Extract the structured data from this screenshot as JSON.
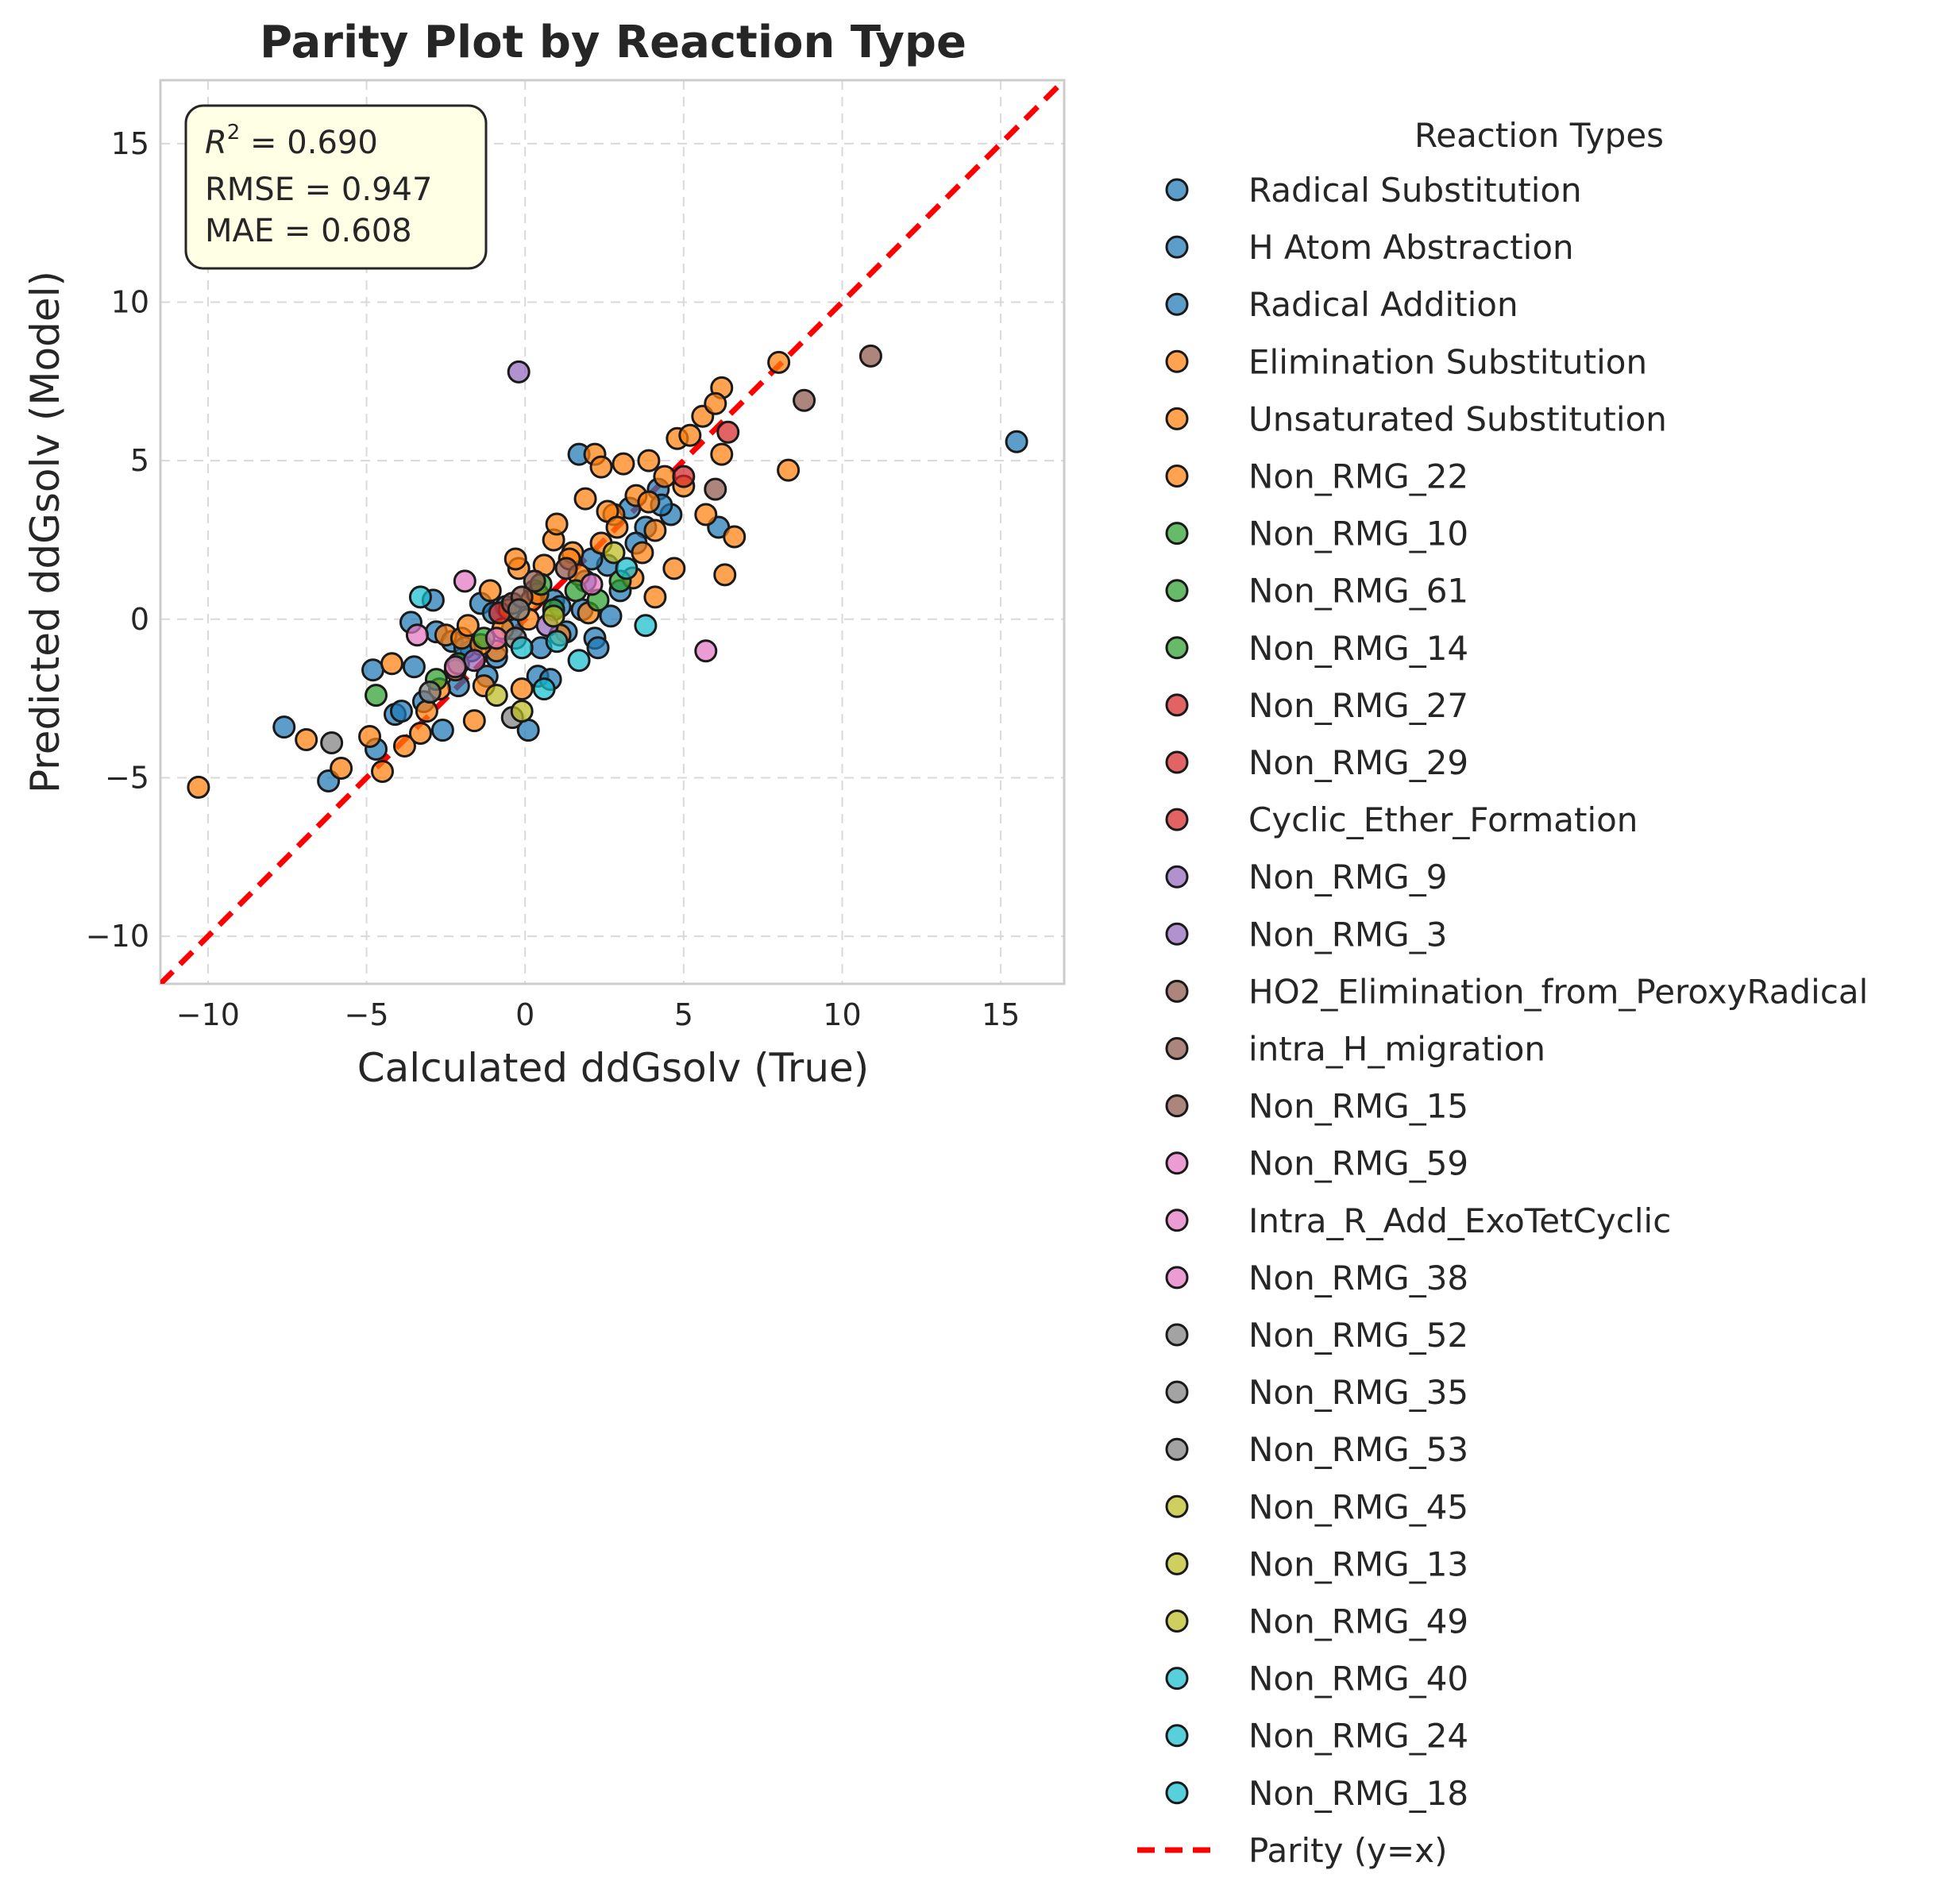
{
  "chart_data": {
    "type": "scatter",
    "title": "Parity Plot by Reaction Type",
    "xlabel": "Calculated ddGsolv (True)",
    "ylabel": "Predicted ddGsolv (Model)",
    "xlim": [
      -11.5,
      17
    ],
    "ylim": [
      -11.5,
      17
    ],
    "xticks": [
      -10,
      -5,
      0,
      5,
      10,
      15
    ],
    "yticks": [
      -10,
      -5,
      0,
      5,
      10,
      15
    ],
    "xtick_labels": [
      "−10",
      "−5",
      "0",
      "5",
      "10",
      "15"
    ],
    "ytick_labels": [
      "−10",
      "−5",
      "0",
      "5",
      "10",
      "15"
    ],
    "grid": true,
    "legend_title": "Reaction Types",
    "legend_position": "outside-right",
    "stats": {
      "r2_symbol": "R",
      "r2_exp": "2",
      "r2_value": " = 0.690",
      "rmse": "RMSE = 0.947",
      "mae": "MAE = 0.608"
    },
    "parity_line": {
      "label": "Parity (y=x)",
      "color": "#ff0000",
      "style": "dashed"
    },
    "series": [
      {
        "name": "Radical Substitution",
        "color": "#1f77b4",
        "points": [
          [
            -2.8,
            -0.4
          ],
          [
            -1.2,
            -1.8
          ],
          [
            0.5,
            -0.9
          ],
          [
            1.8,
            0.3
          ],
          [
            2.6,
            1.7
          ],
          [
            3.8,
            2.9
          ],
          [
            -4.1,
            -3.0
          ],
          [
            -1.7,
            -1.0
          ],
          [
            0.9,
            0.6
          ],
          [
            2.2,
            -0.6
          ],
          [
            3.3,
            3.5
          ],
          [
            4.2,
            4.1
          ],
          [
            -3.5,
            -1.5
          ],
          [
            -0.6,
            0.4
          ]
        ]
      },
      {
        "name": "H Atom Abstraction",
        "color": "#1f77b4",
        "points": [
          [
            -7.6,
            -3.4
          ],
          [
            -6.2,
            -5.1
          ],
          [
            -4.8,
            -1.6
          ],
          [
            -3.6,
            -0.1
          ],
          [
            -2.9,
            0.6
          ],
          [
            -2.1,
            -2.1
          ],
          [
            -0.9,
            -1.2
          ],
          [
            0.1,
            -3.5
          ],
          [
            1.3,
            -0.4
          ],
          [
            2.3,
            -0.9
          ],
          [
            3.0,
            0.9
          ],
          [
            4.6,
            3.3
          ],
          [
            6.1,
            2.9
          ],
          [
            1.7,
            5.2
          ],
          [
            -3.9,
            -2.9
          ],
          [
            -2.3,
            -0.7
          ],
          [
            -1.4,
            0.5
          ],
          [
            0.4,
            -1.8
          ],
          [
            2.1,
            1.9
          ]
        ]
      },
      {
        "name": "Radical Addition",
        "color": "#1f77b4",
        "points": [
          [
            15.5,
            5.6
          ],
          [
            -4.7,
            -4.1
          ],
          [
            -3.2,
            -2.6
          ],
          [
            -1.9,
            -0.9
          ],
          [
            -0.4,
            -0.3
          ],
          [
            0.8,
            -1.9
          ],
          [
            1.9,
            1.2
          ],
          [
            3.5,
            2.4
          ],
          [
            4.3,
            3.6
          ],
          [
            -1.0,
            0.2
          ],
          [
            0.3,
            0.9
          ],
          [
            2.7,
            0.1
          ],
          [
            -2.6,
            -3.5
          ],
          [
            1.1,
            0.4
          ]
        ]
      },
      {
        "name": "Elimination Substitution",
        "color": "#ff7f0e",
        "points": [
          [
            -10.3,
            -5.3
          ],
          [
            -6.9,
            -3.8
          ],
          [
            -5.8,
            -4.7
          ],
          [
            -4.9,
            -3.7
          ],
          [
            -3.8,
            -4.0
          ],
          [
            -2.5,
            -0.5
          ],
          [
            -1.3,
            -2.1
          ],
          [
            -0.2,
            1.6
          ],
          [
            0.9,
            2.5
          ],
          [
            1.9,
            3.8
          ],
          [
            3.1,
            4.9
          ],
          [
            4.8,
            5.7
          ],
          [
            5.6,
            6.4
          ],
          [
            6.2,
            7.3
          ],
          [
            8.0,
            8.1
          ],
          [
            8.3,
            4.7
          ],
          [
            6.3,
            1.4
          ],
          [
            4.1,
            0.7
          ],
          [
            -3.3,
            -3.6
          ],
          [
            -0.9,
            -1.0
          ],
          [
            0.2,
            0.6
          ],
          [
            1.5,
            2.1
          ],
          [
            2.8,
            3.3
          ]
        ]
      },
      {
        "name": "Unsaturated Substitution",
        "color": "#ff7f0e",
        "points": [
          [
            -4.5,
            -4.8
          ],
          [
            -3.1,
            -2.9
          ],
          [
            -2.2,
            -1.6
          ],
          [
            -1.6,
            -3.2
          ],
          [
            -0.7,
            -0.3
          ],
          [
            0.4,
            0.8
          ],
          [
            1.4,
            1.9
          ],
          [
            2.4,
            2.4
          ],
          [
            3.5,
            3.9
          ],
          [
            4.4,
            4.5
          ],
          [
            5.2,
            5.8
          ],
          [
            6.0,
            6.8
          ],
          [
            6.6,
            2.6
          ],
          [
            5.7,
            3.3
          ],
          [
            4.7,
            1.6
          ],
          [
            3.7,
            2.1
          ],
          [
            2.2,
            5.2
          ],
          [
            1.0,
            3.0
          ],
          [
            -0.1,
            -2.2
          ],
          [
            -1.1,
            0.9
          ],
          [
            -2.0,
            -0.6
          ],
          [
            3.9,
            3.7
          ],
          [
            2.6,
            3.4
          ]
        ]
      },
      {
        "name": "Non_RMG_22",
        "color": "#ff7f0e",
        "points": [
          [
            -4.2,
            -1.4
          ],
          [
            -2.7,
            -2.2
          ],
          [
            -1.4,
            -0.8
          ],
          [
            -0.5,
            0.3
          ],
          [
            0.6,
            1.7
          ],
          [
            1.7,
            1.4
          ],
          [
            2.9,
            2.9
          ],
          [
            3.4,
            1.3
          ],
          [
            4.1,
            2.8
          ],
          [
            5.0,
            4.2
          ],
          [
            6.2,
            5.2
          ],
          [
            1.1,
            -0.5
          ],
          [
            -0.3,
            1.9
          ],
          [
            2.0,
            0.2
          ],
          [
            3.9,
            5.0
          ],
          [
            -1.8,
            -0.2
          ],
          [
            0.1,
            0.0
          ],
          [
            2.4,
            4.8
          ]
        ]
      },
      {
        "name": "Non_RMG_10",
        "color": "#2ca02c",
        "points": [
          [
            -4.7,
            -2.4
          ],
          [
            -2.8,
            -1.9
          ],
          [
            0.9,
            0.3
          ],
          [
            2.3,
            0.6
          ]
        ]
      },
      {
        "name": "Non_RMG_61",
        "color": "#2ca02c",
        "points": [
          [
            -1.3,
            -0.6
          ],
          [
            1.6,
            0.9
          ],
          [
            3.0,
            1.2
          ]
        ]
      },
      {
        "name": "Non_RMG_14",
        "color": "#2ca02c",
        "points": [
          [
            0.5,
            1.1
          ],
          [
            -2.1,
            -1.4
          ]
        ]
      },
      {
        "name": "Non_RMG_27",
        "color": "#d62728",
        "points": [
          [
            6.4,
            5.9
          ]
        ]
      },
      {
        "name": "Non_RMG_29",
        "color": "#d62728",
        "points": [
          [
            5.0,
            4.5
          ]
        ]
      },
      {
        "name": "Cyclic_Ether_Formation",
        "color": "#d62728",
        "points": [
          [
            -0.8,
            0.2
          ]
        ]
      },
      {
        "name": "Non_RMG_9",
        "color": "#9467bd",
        "points": [
          [
            -0.2,
            7.8
          ]
        ]
      },
      {
        "name": "Non_RMG_3",
        "color": "#9467bd",
        "points": [
          [
            -1.6,
            -1.3
          ],
          [
            0.7,
            -0.2
          ]
        ]
      },
      {
        "name": "HO2_Elimination_from_PeroxyRadical",
        "color": "#8c564b",
        "points": [
          [
            10.9,
            8.3
          ],
          [
            8.8,
            6.9
          ]
        ]
      },
      {
        "name": "intra_H_migration",
        "color": "#8c564b",
        "points": [
          [
            6.0,
            4.1
          ],
          [
            -0.4,
            0.5
          ],
          [
            0.3,
            1.2
          ]
        ]
      },
      {
        "name": "Non_RMG_15",
        "color": "#8c564b",
        "points": [
          [
            -0.1,
            0.7
          ],
          [
            1.3,
            1.6
          ]
        ]
      },
      {
        "name": "Non_RMG_59",
        "color": "#e377c2",
        "points": [
          [
            5.7,
            -1.0
          ],
          [
            -1.9,
            1.2
          ]
        ]
      },
      {
        "name": "Intra_R_Add_ExoTetCyclic",
        "color": "#e377c2",
        "points": [
          [
            -3.4,
            -0.5
          ],
          [
            -2.2,
            -1.5
          ]
        ]
      },
      {
        "name": "Non_RMG_38",
        "color": "#e377c2",
        "points": [
          [
            2.1,
            1.1
          ],
          [
            -0.9,
            -0.6
          ]
        ]
      },
      {
        "name": "Non_RMG_52",
        "color": "#7f7f7f",
        "points": [
          [
            -6.1,
            -3.9
          ]
        ]
      },
      {
        "name": "Non_RMG_35",
        "color": "#7f7f7f",
        "points": [
          [
            -3.0,
            -2.3
          ],
          [
            -0.3,
            -0.6
          ]
        ]
      },
      {
        "name": "Non_RMG_53",
        "color": "#7f7f7f",
        "points": [
          [
            -0.4,
            -3.1
          ],
          [
            -0.2,
            0.3
          ]
        ]
      },
      {
        "name": "Non_RMG_45",
        "color": "#bcbd22",
        "points": [
          [
            -0.1,
            -2.9
          ],
          [
            0.9,
            0.1
          ]
        ]
      },
      {
        "name": "Non_RMG_13",
        "color": "#bcbd22",
        "points": [
          [
            2.8,
            2.1
          ]
        ]
      },
      {
        "name": "Non_RMG_49",
        "color": "#bcbd22",
        "points": [
          [
            -0.9,
            -2.4
          ]
        ]
      },
      {
        "name": "Non_RMG_40",
        "color": "#17becf",
        "points": [
          [
            -3.3,
            0.7
          ],
          [
            1.7,
            -1.3
          ],
          [
            3.8,
            -0.2
          ]
        ]
      },
      {
        "name": "Non_RMG_24",
        "color": "#17becf",
        "points": [
          [
            0.6,
            -2.2
          ],
          [
            3.2,
            1.6
          ]
        ]
      },
      {
        "name": "Non_RMG_18",
        "color": "#17becf",
        "points": [
          [
            -0.1,
            -0.9
          ],
          [
            1.0,
            -0.7
          ]
        ]
      }
    ]
  }
}
